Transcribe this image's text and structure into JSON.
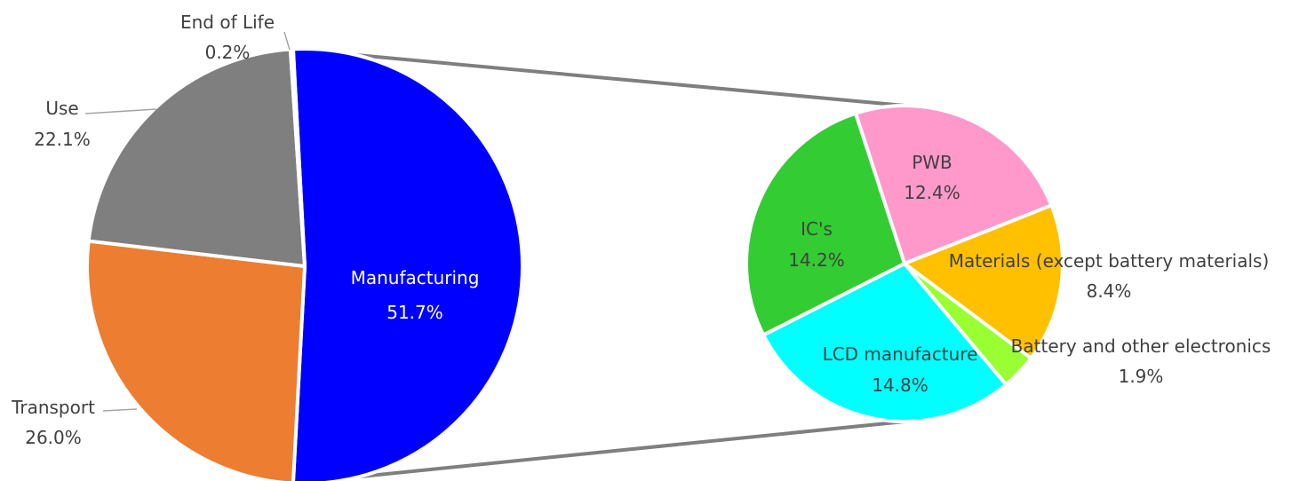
{
  "chart_data": {
    "type": "pie",
    "title": "",
    "main_pie": {
      "slices": [
        {
          "label": "Manufacturing",
          "value": 51.7,
          "value_label": "51.7%",
          "color": "#0000FF"
        },
        {
          "label": "Transport",
          "value": 26.0,
          "value_label": "26.0%",
          "color": "#ED7D31"
        },
        {
          "label": "Use",
          "value": 22.1,
          "value_label": "22.1%",
          "color": "#7F7F7F"
        },
        {
          "label": "End of Life",
          "value": 0.2,
          "value_label": "0.2%",
          "color": "#C0C0C0"
        }
      ]
    },
    "breakdown_of": "Manufacturing",
    "sub_pie": {
      "slices": [
        {
          "label": "PWB",
          "value": 12.4,
          "value_label": "12.4%",
          "color": "#FF99CC"
        },
        {
          "label": "Materials (except battery materials)",
          "value": 8.4,
          "value_label": "8.4%",
          "color": "#FFC000"
        },
        {
          "label": "Battery and other electronics",
          "value": 1.9,
          "value_label": "1.9%",
          "color": "#99FF33"
        },
        {
          "label": "LCD manufacture",
          "value": 14.8,
          "value_label": "14.8%",
          "color": "#00FFFF"
        },
        {
          "label": "IC's",
          "value": 14.2,
          "value_label": "14.2%",
          "color": "#33CC33"
        }
      ]
    }
  }
}
